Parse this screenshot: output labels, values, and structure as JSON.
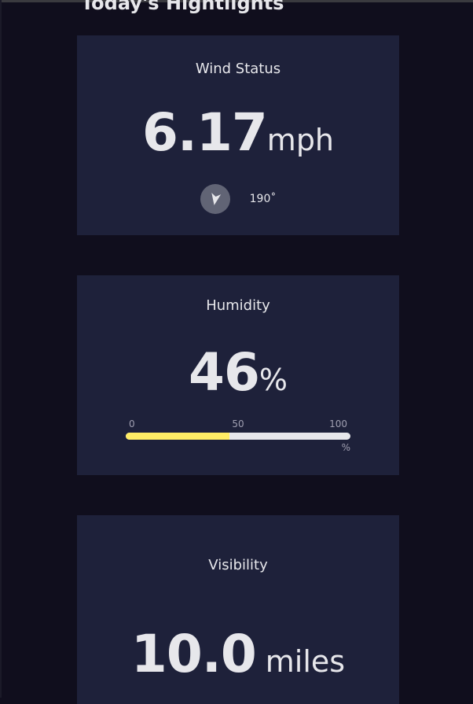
{
  "section": {
    "title": "Today's Hightlights"
  },
  "wind": {
    "label": "Wind Status",
    "value": "6.17",
    "unit": "mph",
    "direction_deg": 190,
    "direction_text": "190˚",
    "icon": "navigation-arrow-icon"
  },
  "humidity": {
    "label": "Humidity",
    "value": "46",
    "unit": "%",
    "percent": 46,
    "scale": {
      "min": "0",
      "mid": "50",
      "max": "100",
      "unit": "%"
    }
  },
  "visibility": {
    "label": "Visibility",
    "value": "10.0",
    "unit": "miles"
  },
  "colors": {
    "page_bg": "#100e1d",
    "card_bg": "#1e213a",
    "text": "#e7e7eb",
    "muted": "#a09fb1",
    "bar_fill": "#ffec65",
    "bar_track": "#e7e7eb"
  }
}
